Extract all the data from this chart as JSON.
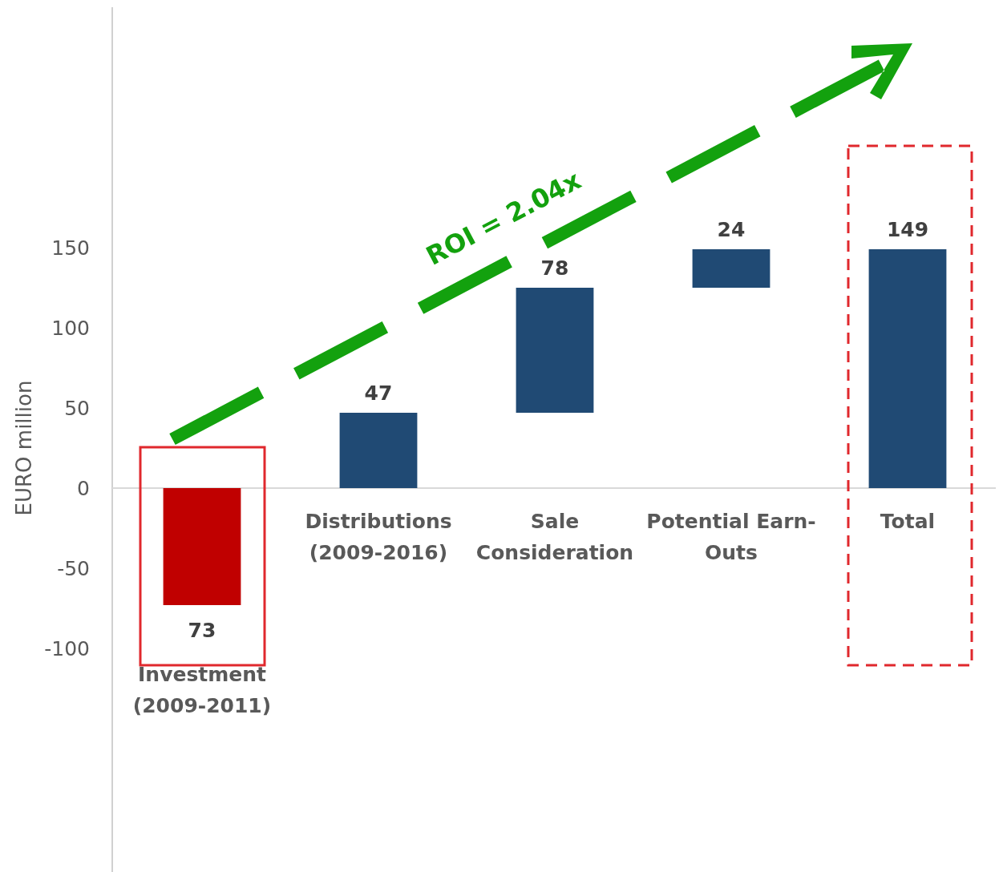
{
  "chart_data": {
    "type": "bar",
    "ylabel": "EURO million",
    "categories": [
      "Investment (2009-2011)",
      "Distributions (2009-2016)",
      "Sale Consideration",
      "Potential Earn-Outs",
      "Total"
    ],
    "values": [
      -73,
      47,
      78,
      24,
      149
    ],
    "base": [
      0,
      0,
      47,
      125,
      0
    ],
    "colors": [
      "#c00000",
      "#204a74",
      "#204a74",
      "#204a74",
      "#204a74"
    ],
    "value_labels": [
      "73",
      "47",
      "78",
      "24",
      "149"
    ],
    "ylim": [
      -240,
      300
    ],
    "yticks": [
      -100,
      -50,
      0,
      50,
      100,
      150
    ],
    "annotations": [
      "ROI = 2.04x"
    ]
  }
}
